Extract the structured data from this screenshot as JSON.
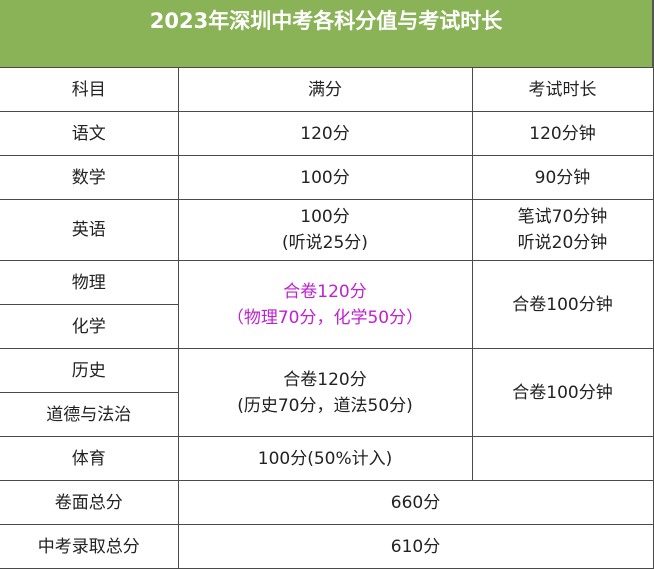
{
  "title": "2023年深圳中考各科分值与考试时长",
  "headers": [
    "科目",
    "满分",
    "考试时长"
  ],
  "rows": {
    "chinese": {
      "subject": "语文",
      "score": "120分",
      "time": "120分钟"
    },
    "math": {
      "subject": "数学",
      "score": "100分",
      "time": "90分钟"
    },
    "english": {
      "subject": "英语",
      "score_line1": "100分",
      "score_line2": "(听说25分)",
      "time_line1": "笔试70分钟",
      "time_line2": "听说20分钟"
    },
    "physics_chem": {
      "subject1": "物理",
      "subject2": "化学",
      "score_line1": "合卷120分",
      "score_line2": "（物理70分，化学50分）",
      "time": "合卷100分钟"
    },
    "history_politics": {
      "subject1": "历史",
      "subject2": "道德与法治",
      "score_line1": "合卷120分",
      "score_line2": "(历史70分，道法50分)",
      "time": "合卷100分钟"
    },
    "pe": {
      "subject": "体育",
      "score": "100分(50%计入)",
      "time": ""
    },
    "paper_total": {
      "label": "卷面总分",
      "value": "660分"
    },
    "admission_total": {
      "label": "中考录取总分",
      "value": "610分"
    }
  },
  "colors": {
    "header_bg": "#8ab357",
    "highlight_text": "#c020d0"
  }
}
